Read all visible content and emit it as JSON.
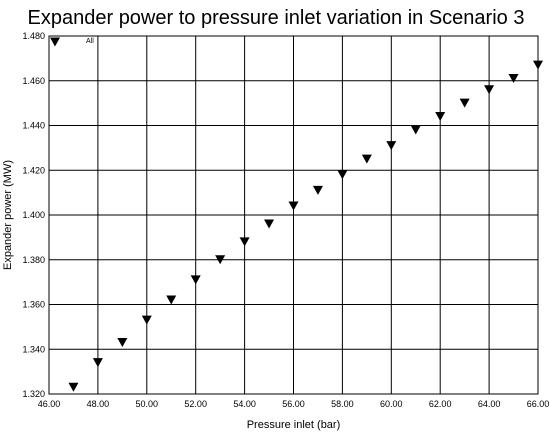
{
  "chart_data": {
    "type": "scatter",
    "title": "Expander power to pressure inlet variation in Scenario 3",
    "xlabel": "Pressure inlet (bar)",
    "ylabel": "Expander power (MW)",
    "xlim": [
      46.0,
      66.0
    ],
    "ylim": [
      1.32,
      1.48
    ],
    "xticks": [
      "46.00",
      "48.00",
      "50.00",
      "52.00",
      "54.00",
      "56.00",
      "58.00",
      "60.00",
      "62.00",
      "64.00",
      "66.00"
    ],
    "yticks": [
      "1.480",
      "1.460",
      "1.440",
      "1.420",
      "1.400",
      "1.380",
      "1.360",
      "1.340",
      "1.320"
    ],
    "grid": true,
    "marker": "triangle-down",
    "legend_position": "top-left",
    "series": [
      {
        "name": "All",
        "color": "#000000",
        "x": [
          47,
          48,
          49,
          50,
          51,
          52,
          53,
          54,
          55,
          56,
          57,
          58,
          59,
          60,
          61,
          62,
          63,
          64,
          65,
          66
        ],
        "y": [
          1.323,
          1.334,
          1.343,
          1.353,
          1.362,
          1.371,
          1.38,
          1.388,
          1.396,
          1.404,
          1.411,
          1.418,
          1.425,
          1.431,
          1.438,
          1.444,
          1.45,
          1.456,
          1.461,
          1.467
        ]
      }
    ]
  }
}
